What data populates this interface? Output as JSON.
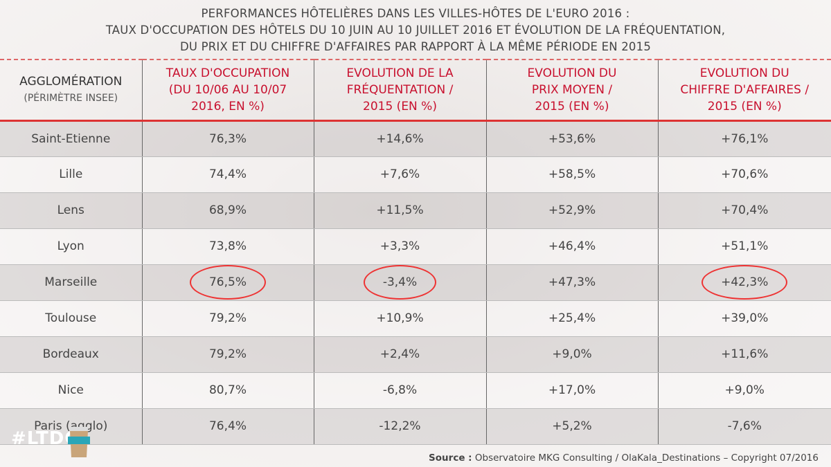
{
  "title": [
    "PERFORMANCES HÔTELIÈRES DANS LES VILLES-HÔTES DE L'EURO 2016 :",
    "TAUX D'OCCUPATION DES HÔTELS DU 10 JUIN AU 10 JUILLET 2016 ET ÉVOLUTION DE LA FRÉQUENTATION,",
    "DU PRIX ET DU CHIFFRE D'AFFAIRES PAR RAPPORT À LA MÊME PÉRIODE EN 2015"
  ],
  "headers": [
    {
      "main": "AGGLOMÉRATION",
      "sub": "(PÉRIMÈTRE INSEE)"
    },
    {
      "main": "TAUX D'OCCUPATION (DU 10/06 AU 10/07 2016, EN %)"
    },
    {
      "main": "EVOLUTION DE LA FRÉQUENTATION / 2015 (EN %)"
    },
    {
      "main": "EVOLUTION DU PRIX MOYEN / 2015 (EN %)"
    },
    {
      "main": "EVOLUTION DU CHIFFRE D'AFFAIRES / 2015 (EN %)"
    }
  ],
  "rows": [
    [
      "Saint-Etienne",
      "76,3%",
      "+14,6%",
      "+53,6%",
      "+76,1%"
    ],
    [
      "Lille",
      "74,4%",
      "+7,6%",
      "+58,5%",
      "+70,6%"
    ],
    [
      "Lens",
      "68,9%",
      "+11,5%",
      "+52,9%",
      "+70,4%"
    ],
    [
      "Lyon",
      "73,8%",
      "+3,3%",
      "+46,4%",
      "+51,1%"
    ],
    [
      "Marseille",
      "76,5%",
      "-3,4%",
      "+47,3%",
      "+42,3%"
    ],
    [
      "Toulouse",
      "79,2%",
      "+10,9%",
      "+25,4%",
      "+39,0%"
    ],
    [
      "Bordeaux",
      "79,2%",
      "+2,4%",
      "+9,0%",
      "+11,6%"
    ],
    [
      "Nice",
      "80,7%",
      "-6,8%",
      "+17,0%",
      "+9,0%"
    ],
    [
      "Paris (agglo)",
      "76,4%",
      "-12,2%",
      "+5,2%",
      "-7,6%"
    ]
  ],
  "highlighted_row": "Marseille",
  "source": {
    "label": "Source :",
    "text": " Observatoire MKG Consulting / OlaKala_Destinations – Copyright 07/2016"
  },
  "overlay": {
    "hashtag": "#LTDC",
    "cup_logo": "MKG"
  },
  "colors": {
    "header_red": "#c8102e",
    "circle_red": "#e33"
  }
}
